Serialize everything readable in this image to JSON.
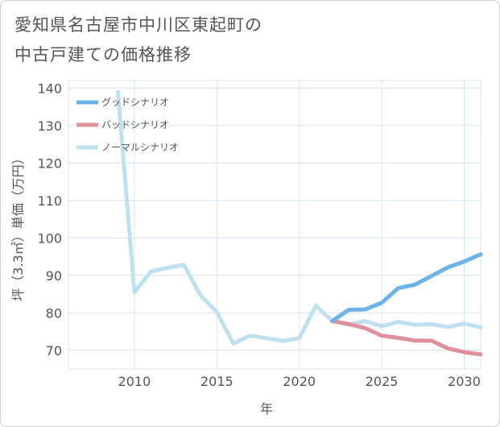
{
  "title_lines": [
    "愛知県名古屋市中川区東起町の",
    "中古戸建ての価格推移"
  ],
  "chart_data": {
    "type": "line",
    "xlabel": "年",
    "ylabel": "坪（3.3㎡）単価（万円）",
    "xlim": [
      2006,
      2031
    ],
    "ylim": [
      65,
      142
    ],
    "x_ticks": [
      2010,
      2015,
      2020,
      2025,
      2030
    ],
    "y_ticks": [
      70,
      80,
      90,
      100,
      110,
      120,
      130,
      140
    ],
    "grid": true,
    "legend_position": "top-left",
    "series": [
      {
        "name": "グッドシナリオ",
        "color": "#6cb4e8",
        "x": [
          2022,
          2023,
          2024,
          2025,
          2026,
          2027,
          2028,
          2029,
          2030,
          2031
        ],
        "y": [
          77.8,
          80.8,
          80.9,
          82.7,
          86.6,
          87.5,
          89.8,
          92.1,
          93.7,
          95.6
        ]
      },
      {
        "name": "バッドシナリオ",
        "color": "#e0909a",
        "x": [
          2022,
          2023,
          2024,
          2025,
          2026,
          2027,
          2028,
          2029,
          2030,
          2031
        ],
        "y": [
          77.8,
          77.0,
          75.9,
          73.9,
          73.3,
          72.6,
          72.6,
          70.5,
          69.5,
          68.9
        ]
      },
      {
        "name": "ノーマルシナリオ",
        "color": "#bfe0ee",
        "x": [
          2009,
          2010,
          2011,
          2012,
          2013,
          2014,
          2015,
          2016,
          2017,
          2018,
          2019,
          2020,
          2021,
          2022,
          2023,
          2024,
          2025,
          2026,
          2027,
          2028,
          2029,
          2030,
          2031
        ],
        "y": [
          139.0,
          85.5,
          91.0,
          92.0,
          92.8,
          84.7,
          80.2,
          71.8,
          73.9,
          73.2,
          72.5,
          73.2,
          81.9,
          77.8,
          76.8,
          77.8,
          76.4,
          77.6,
          76.8,
          77.0,
          76.2,
          77.1,
          76.1
        ]
      }
    ]
  }
}
